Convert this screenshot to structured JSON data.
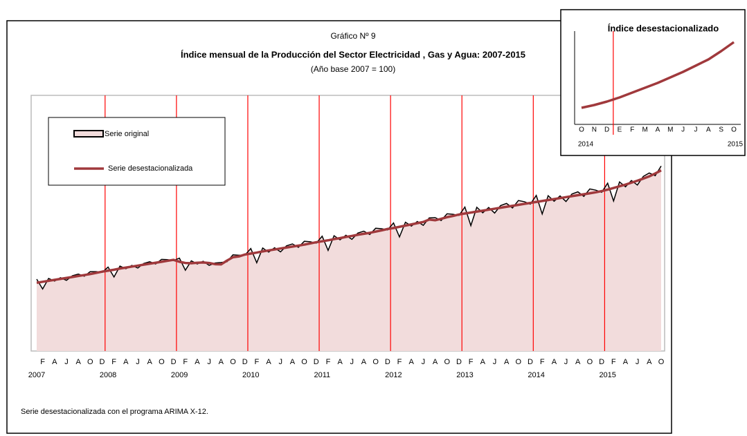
{
  "chart_data": [
    {
      "type": "line",
      "label": "Gráfico Nº 9",
      "title": "Índice mensual de la Producción del Sector Electricidad , Gas y Agua: 2007-2015",
      "subtitle": "(Año base 2007 = 100)",
      "footnote": "Serie desestacionalizada con el programa ARIMA X-12.",
      "categories": [
        null,
        "F",
        null,
        "A",
        null,
        "J",
        null,
        "A",
        null,
        "O",
        null,
        "D",
        null,
        "F",
        null,
        "A",
        null,
        "J",
        null,
        "A",
        null,
        "O",
        null,
        "D",
        null,
        "F",
        null,
        "A",
        null,
        "J",
        null,
        "A",
        null,
        "O",
        null,
        "D",
        null,
        "F",
        null,
        "A",
        null,
        "J",
        null,
        "A",
        null,
        "O",
        null,
        "D",
        null,
        "F",
        null,
        "A",
        null,
        "J",
        null,
        "A",
        null,
        "O",
        null,
        "D",
        null,
        "F",
        null,
        "A",
        null,
        "J",
        null,
        "A",
        null,
        "O",
        null,
        "D",
        null,
        "F",
        null,
        "A",
        null,
        "J",
        null,
        "A",
        null,
        "O",
        null,
        "D",
        null,
        "F",
        null,
        "A",
        null,
        "J",
        null,
        "A",
        null,
        "O",
        null,
        "D",
        null,
        "F",
        null,
        "A",
        null,
        "J",
        null,
        "A",
        null,
        "O"
      ],
      "year_labels": [
        "2007",
        "2008",
        "2009",
        "2010",
        "2011",
        "2012",
        "2013",
        "2014",
        "2015"
      ],
      "ylim": [
        70,
        176
      ],
      "series": [
        {
          "name": "Serie original",
          "color": "#000000",
          "fill": "#f2dcdc",
          "values": [
            99.8,
            95.7,
            100.1,
            99.0,
            100.4,
            99.3,
            101.2,
            101.9,
            101.0,
            102.9,
            102.9,
            102.6,
            104.8,
            100.7,
            105.2,
            104.1,
            105.5,
            104.4,
            106.3,
            107.0,
            106.1,
            108.0,
            107.9,
            107.5,
            108.5,
            103.5,
            107.4,
            106.1,
            107.2,
            105.5,
            106.5,
            106.7,
            107.0,
            109.9,
            109.7,
            109.7,
            112.5,
            106.6,
            112.7,
            111.0,
            112.8,
            111.1,
            113.6,
            114.4,
            113.0,
            115.5,
            115.3,
            114.7,
            117.6,
            111.7,
            117.8,
            116.1,
            118.0,
            116.3,
            118.9,
            119.7,
            118.3,
            120.9,
            120.7,
            120.2,
            123.1,
            117.3,
            123.4,
            121.8,
            123.7,
            122.1,
            125.2,
            125.3,
            124.1,
            126.9,
            126.7,
            126.2,
            129.7,
            122.0,
            129.6,
            127.3,
            129.5,
            127.2,
            130.3,
            131.2,
            129.3,
            132.4,
            131.9,
            130.9,
            134.5,
            126.8,
            134.4,
            132.1,
            134.3,
            132.0,
            135.1,
            136.0,
            134.1,
            137.2,
            136.7,
            135.8,
            139.6,
            132.2,
            140.1,
            138.1,
            140.7,
            138.8,
            142.4,
            143.8,
            142.7,
            146.7
          ]
        },
        {
          "name": "Serie desestacionalizada",
          "color": "#a0393c",
          "values": [
            98.3,
            98.7,
            99.1,
            99.5,
            99.9,
            100.3,
            100.7,
            101.1,
            101.5,
            101.9,
            102.4,
            102.9,
            103.3,
            103.7,
            104.2,
            104.6,
            105.0,
            105.4,
            105.8,
            106.2,
            106.6,
            107.0,
            107.4,
            107.8,
            107.0,
            106.5,
            106.4,
            106.6,
            106.7,
            106.5,
            106.0,
            105.9,
            107.5,
            108.9,
            109.2,
            110.0,
            110.4,
            110.8,
            111.3,
            111.7,
            112.1,
            112.5,
            112.9,
            113.3,
            113.7,
            114.1,
            114.6,
            115.1,
            115.5,
            115.9,
            116.4,
            116.8,
            117.3,
            117.7,
            118.2,
            118.6,
            119.0,
            119.5,
            120.0,
            120.6,
            121.0,
            121.5,
            122.0,
            122.5,
            123.0,
            123.5,
            124.5,
            124.2,
            124.8,
            125.5,
            126.0,
            126.6,
            127.0,
            127.4,
            127.8,
            128.2,
            128.6,
            129.0,
            129.4,
            129.8,
            130.2,
            130.6,
            131.0,
            131.4,
            131.8,
            132.2,
            132.6,
            133.0,
            133.4,
            133.8,
            134.2,
            134.6,
            135.0,
            135.4,
            135.8,
            136.3,
            136.9,
            137.6,
            138.3,
            139.0,
            139.8,
            140.6,
            141.5,
            142.4,
            143.6,
            144.9
          ]
        }
      ]
    },
    {
      "type": "line",
      "title": "Índice desestacionalizado",
      "categories": [
        "O",
        "N",
        "D",
        "E",
        "F",
        "M",
        "A",
        "M",
        "J",
        "J",
        "A",
        "S",
        "O"
      ],
      "year_labels": [
        "2014",
        "2015"
      ],
      "ylim": [
        133,
        146
      ],
      "color": "#a0393c",
      "values": [
        135.4,
        135.8,
        136.3,
        136.9,
        137.6,
        138.3,
        139.0,
        139.8,
        140.6,
        141.5,
        142.4,
        143.6,
        144.9
      ]
    }
  ]
}
